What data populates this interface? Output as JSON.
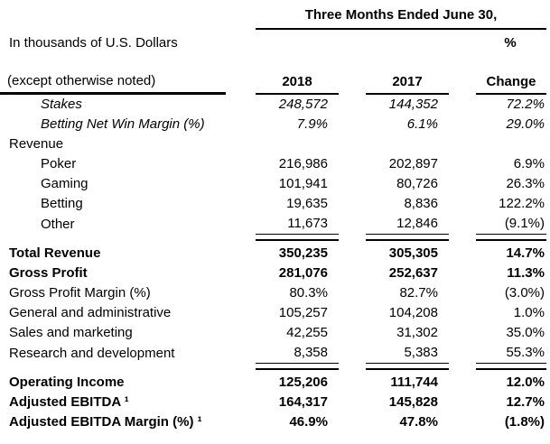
{
  "header": {
    "title": "Three Months Ended June 30,",
    "unit_note": "In thousands of U.S. Dollars",
    "percent_label": "%",
    "note": "(except otherwise noted)",
    "col_2018": "2018",
    "col_2017": "2017",
    "col_change": "Change"
  },
  "table": {
    "rows": [
      {
        "label": "Stakes",
        "v2018": "248,572",
        "v2017": "144,352",
        "change": "72.2%",
        "indent": true,
        "italic": true,
        "bold": false,
        "rule_below": false,
        "rule_above": false
      },
      {
        "label": "Betting Net Win Margin (%)",
        "v2018": "7.9%",
        "v2017": "6.1%",
        "change": "29.0%",
        "indent": true,
        "italic": true,
        "bold": false,
        "rule_below": false,
        "rule_above": false
      },
      {
        "label": "Revenue",
        "v2018": "",
        "v2017": "",
        "change": "",
        "indent": false,
        "italic": false,
        "bold": false,
        "rule_below": false,
        "rule_above": false
      },
      {
        "label": "Poker",
        "v2018": "216,986",
        "v2017": "202,897",
        "change": "6.9%",
        "indent": true,
        "italic": false,
        "bold": false,
        "rule_below": false,
        "rule_above": false
      },
      {
        "label": "Gaming",
        "v2018": "101,941",
        "v2017": "80,726",
        "change": "26.3%",
        "indent": true,
        "italic": false,
        "bold": false,
        "rule_below": false,
        "rule_above": false
      },
      {
        "label": "Betting",
        "v2018": "19,635",
        "v2017": "8,836",
        "change": "122.2%",
        "indent": true,
        "italic": false,
        "bold": false,
        "rule_below": false,
        "rule_above": false
      },
      {
        "label": "Other",
        "v2018": "11,673",
        "v2017": "12,846",
        "change": "(9.1%)",
        "indent": true,
        "italic": false,
        "bold": false,
        "rule_below": true,
        "rule_above": false
      },
      {
        "label": "Total Revenue",
        "v2018": "350,235",
        "v2017": "305,305",
        "change": "14.7%",
        "indent": false,
        "italic": false,
        "bold": true,
        "rule_below": false,
        "rule_above": true
      },
      {
        "label": "Gross Profit",
        "v2018": "281,076",
        "v2017": "252,637",
        "change": "11.3%",
        "indent": false,
        "italic": false,
        "bold": true,
        "rule_below": false,
        "rule_above": false
      },
      {
        "label": "Gross Profit Margin (%)",
        "v2018": "80.3%",
        "v2017": "82.7%",
        "change": "(3.0%)",
        "indent": false,
        "italic": false,
        "bold": false,
        "rule_below": false,
        "rule_above": false
      },
      {
        "label": "General and administrative",
        "v2018": "105,257",
        "v2017": "104,208",
        "change": "1.0%",
        "indent": false,
        "italic": false,
        "bold": false,
        "rule_below": false,
        "rule_above": false
      },
      {
        "label": "Sales and marketing",
        "v2018": "42,255",
        "v2017": "31,302",
        "change": "35.0%",
        "indent": false,
        "italic": false,
        "bold": false,
        "rule_below": false,
        "rule_above": false
      },
      {
        "label": "Research and development",
        "v2018": "8,358",
        "v2017": "5,383",
        "change": "55.3%",
        "indent": false,
        "italic": false,
        "bold": false,
        "rule_below": true,
        "rule_above": false
      },
      {
        "label": "Operating Income",
        "v2018": "125,206",
        "v2017": "111,744",
        "change": "12.0%",
        "indent": false,
        "italic": false,
        "bold": true,
        "rule_below": false,
        "rule_above": true
      },
      {
        "label": "Adjusted EBITDA ¹",
        "v2018": "164,317",
        "v2017": "145,828",
        "change": "12.7%",
        "indent": false,
        "italic": false,
        "bold": true,
        "rule_below": false,
        "rule_above": false
      },
      {
        "label": "Adjusted EBITDA Margin (%) ¹",
        "v2018": "46.9%",
        "v2017": "47.8%",
        "change": "(1.8%)",
        "indent": false,
        "italic": false,
        "bold": true,
        "rule_below": false,
        "rule_above": false
      }
    ]
  }
}
